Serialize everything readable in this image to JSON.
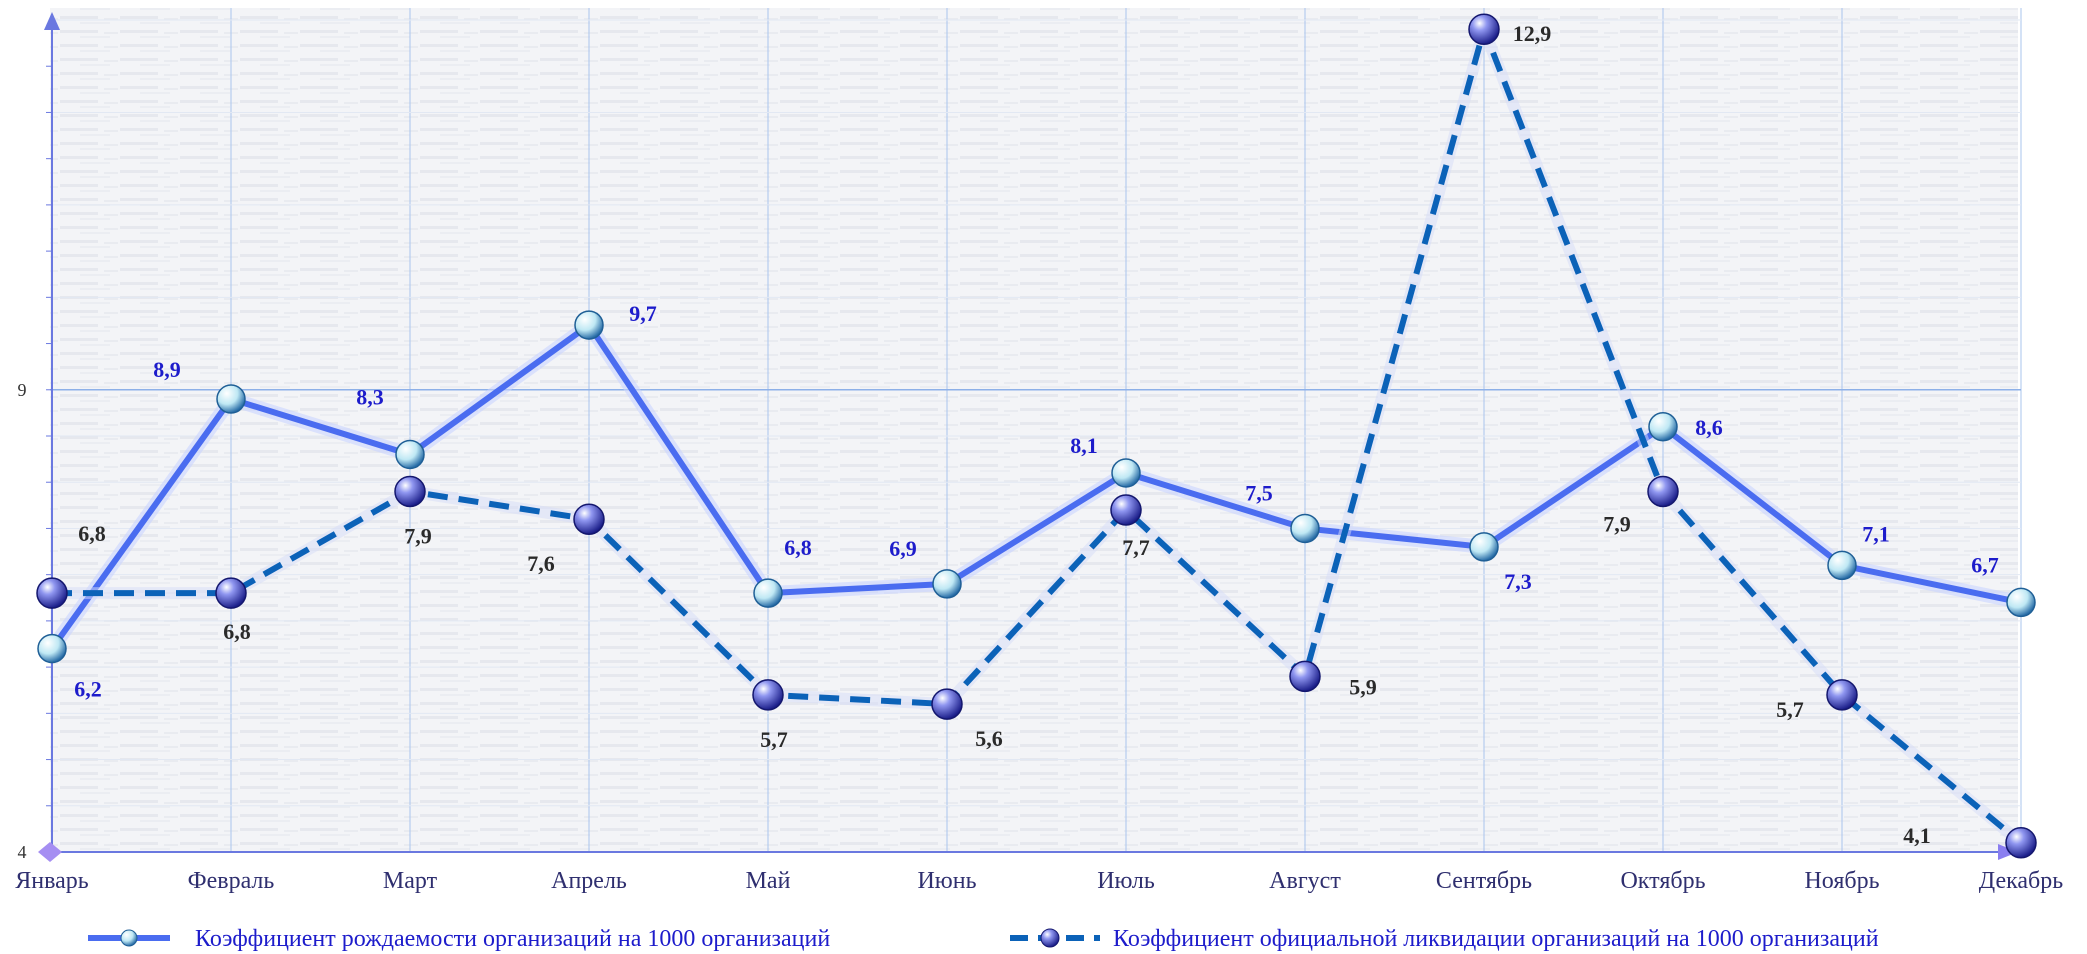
{
  "chart_data": {
    "type": "line",
    "categories": [
      "Январь",
      "Февраль",
      "Март",
      "Апрель",
      "Май",
      "Июнь",
      "Июль",
      "Август",
      "Сентябрь",
      "Октябрь",
      "Ноябрь",
      "Декабрь"
    ],
    "series": [
      {
        "name": "Коэффициент  рождаемости  организаций  на  1000  организаций",
        "values": [
          6.2,
          8.9,
          8.3,
          9.7,
          6.8,
          6.9,
          8.1,
          7.5,
          7.3,
          8.6,
          7.1,
          6.7
        ],
        "labels": [
          "6,2",
          "8,9",
          "8,3",
          "9,7",
          "6,8",
          "6,9",
          "8,1",
          "7,5",
          "7,3",
          "8,6",
          "7,1",
          "6,7"
        ],
        "style": "solid",
        "color": "#4a6cf0"
      },
      {
        "name": "Коэффициент официальной ликвидации организаций на 1000 организаций",
        "values": [
          6.8,
          6.8,
          7.9,
          7.6,
          5.7,
          5.6,
          7.7,
          5.9,
          12.9,
          7.9,
          5.7,
          4.1
        ],
        "labels": [
          "6,8",
          "6,8",
          "7,9",
          "7,6",
          "5,7",
          "5,6",
          "7,7",
          "5,9",
          "12,9",
          "7,9",
          "5,7",
          "4,1"
        ],
        "style": "dashed",
        "color": "#0b62b8"
      }
    ],
    "yticks": [
      "4",
      "9"
    ],
    "ylim": [
      4,
      13
    ],
    "grid": true,
    "legend": "bottom"
  }
}
